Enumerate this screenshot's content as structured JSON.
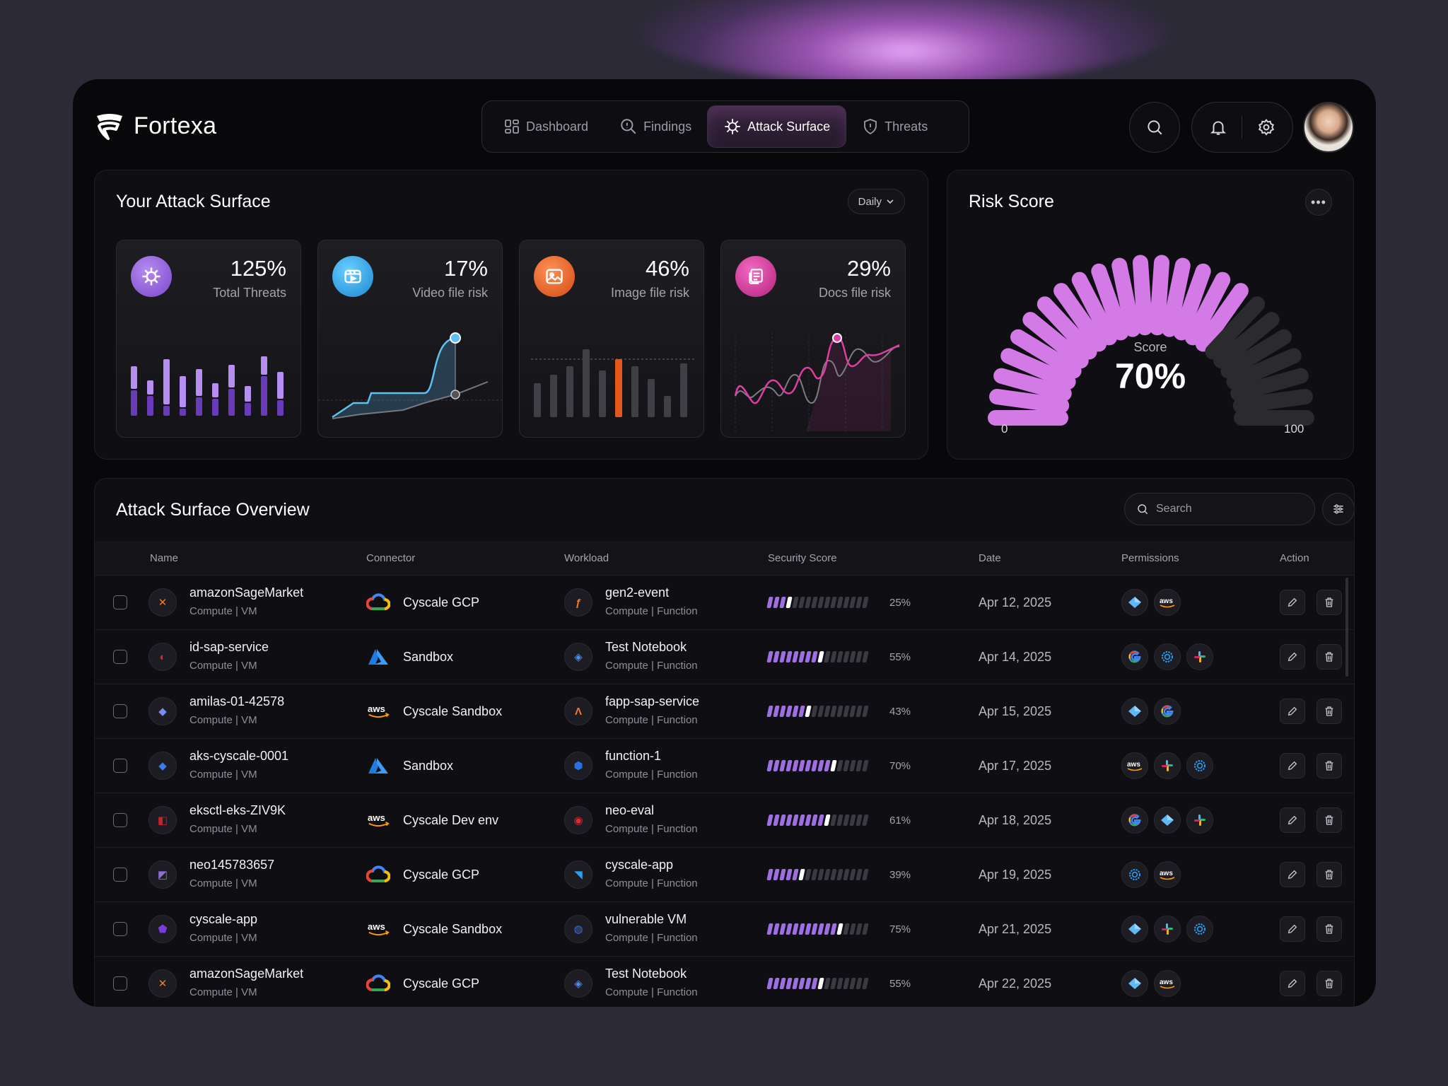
{
  "brand": {
    "name": "Fortexa"
  },
  "nav": [
    {
      "label": "Dashboard",
      "icon": "dashboard-icon"
    },
    {
      "label": "Findings",
      "icon": "findings-icon"
    },
    {
      "label": "Attack Surface",
      "icon": "virus-icon",
      "active": true
    },
    {
      "label": "Threats",
      "icon": "shield-icon"
    }
  ],
  "attack_surface": {
    "title": "Your Attack Surface",
    "period": "Daily",
    "cards": [
      {
        "value": "125%",
        "label": "Total Threats",
        "color": "#8d5cd6"
      },
      {
        "value": "17%",
        "label": "Video file risk",
        "color": "#2ba3e6"
      },
      {
        "value": "46%",
        "label": "Image file risk",
        "color": "#e4581e"
      },
      {
        "value": "29%",
        "label": "Docs file risk",
        "color": "#d1359a"
      }
    ]
  },
  "risk": {
    "title": "Risk Score",
    "score_label": "Score",
    "score": "70%",
    "score_value": 70,
    "min": "0",
    "max": "100",
    "accent": "#d37ae6"
  },
  "overview": {
    "title": "Attack Surface Overview",
    "search_placeholder": "Search",
    "columns": [
      "Name",
      "Connector",
      "Workload",
      "Security Score",
      "Date",
      "Permissions",
      "Action"
    ],
    "rows": [
      {
        "name": "amazonSageMarket",
        "sub": "Compute | VM",
        "connector": "Cyscale GCP",
        "workload": "gen2-event",
        "wsub": "Compute | Function",
        "score": "25%",
        "score_value": 25,
        "date": "Apr 12, 2025",
        "perms": [
          "azure",
          "aws"
        ]
      },
      {
        "name": "id-sap-service",
        "sub": "Compute | VM",
        "connector": "Sandbox",
        "workload": "Test Notebook",
        "wsub": "Compute | Function",
        "score": "55%",
        "score_value": 55,
        "date": "Apr 14, 2025",
        "perms": [
          "google",
          "kubernetes",
          "slack"
        ]
      },
      {
        "name": "amilas-01-42578",
        "sub": "Compute | VM",
        "connector": "Cyscale Sandbox",
        "workload": "fapp-sap-service",
        "wsub": "Compute | Function",
        "score": "43%",
        "score_value": 43,
        "date": "Apr 15, 2025",
        "perms": [
          "azure",
          "google"
        ]
      },
      {
        "name": "aks-cyscale-0001",
        "sub": "Compute | VM",
        "connector": "Sandbox",
        "workload": "function-1",
        "wsub": "Compute | Function",
        "score": "70%",
        "score_value": 70,
        "date": "Apr 17, 2025",
        "perms": [
          "aws",
          "slack",
          "kubernetes"
        ]
      },
      {
        "name": "eksctl-eks-ZIV9K",
        "sub": "Compute | VM",
        "connector": "Cyscale Dev env",
        "workload": "neo-eval",
        "wsub": "Compute | Function",
        "score": "61%",
        "score_value": 61,
        "date": "Apr 18, 2025",
        "perms": [
          "google",
          "azure",
          "slack"
        ]
      },
      {
        "name": "neo145783657",
        "sub": "Compute | VM",
        "connector": "Cyscale GCP",
        "workload": "cyscale-app",
        "wsub": "Compute | Function",
        "score": "39%",
        "score_value": 39,
        "date": "Apr 19, 2025",
        "perms": [
          "kubernetes",
          "aws"
        ]
      },
      {
        "name": "cyscale-app",
        "sub": "Compute | VM",
        "connector": "Cyscale Sandbox",
        "workload": "vulnerable VM",
        "wsub": "Compute | Function",
        "score": "75%",
        "score_value": 75,
        "date": "Apr 21, 2025",
        "perms": [
          "azure",
          "slack",
          "kubernetes"
        ]
      },
      {
        "name": "amazonSageMarket",
        "sub": "Compute | VM",
        "connector": "Cyscale GCP",
        "workload": "Test Notebook",
        "wsub": "Compute | Function",
        "score": "55%",
        "score_value": 55,
        "date": "Apr 22, 2025",
        "perms": [
          "azure",
          "aws"
        ]
      }
    ]
  }
}
